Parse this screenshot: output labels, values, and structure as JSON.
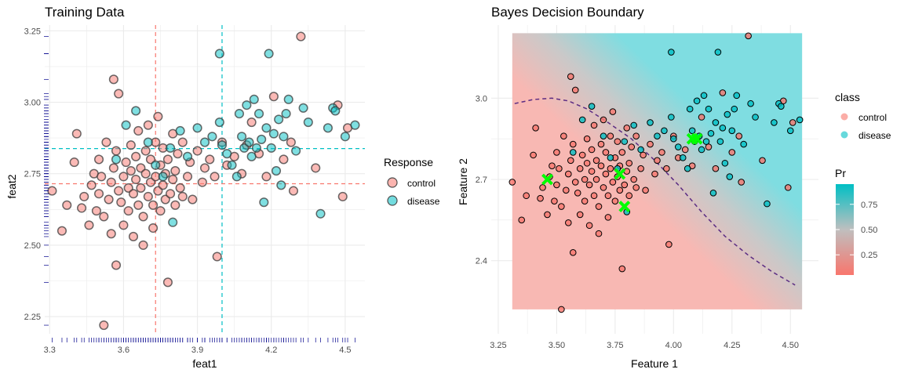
{
  "colors": {
    "control": "#F8766D",
    "disease": "#00BFC4",
    "grid": "#EBEBEB",
    "rug": "#00008B",
    "boundary": "#5B2C83",
    "marker": "#00FF00"
  },
  "chart_data": [
    {
      "type": "scatter",
      "title": "Training Data",
      "xlabel": "feat1",
      "ylabel": "feat2",
      "xlim": [
        3.28,
        4.58
      ],
      "ylim": [
        2.19,
        3.27
      ],
      "x_ticks": [
        "3.3",
        "3.6",
        "3.9",
        "4.2",
        "4.5"
      ],
      "y_ticks": [
        "2.25",
        "2.50",
        "2.75",
        "3.00",
        "3.25"
      ],
      "grid": true,
      "rug": true,
      "legend": {
        "title": "Response",
        "position": "right",
        "entries": [
          "control",
          "disease"
        ]
      },
      "reference_lines": [
        {
          "axis": "x",
          "value": 3.73,
          "class": "control"
        },
        {
          "axis": "x",
          "value": 4.0,
          "class": "disease"
        },
        {
          "axis": "y",
          "value": 2.715,
          "class": "control"
        },
        {
          "axis": "y",
          "value": 2.838,
          "class": "disease"
        }
      ],
      "series": [
        {
          "name": "control",
          "points": [
            [
              3.31,
              2.69
            ],
            [
              3.35,
              2.55
            ],
            [
              3.37,
              2.64
            ],
            [
              3.4,
              2.79
            ],
            [
              3.41,
              2.89
            ],
            [
              3.43,
              2.63
            ],
            [
              3.44,
              2.67
            ],
            [
              3.46,
              2.57
            ],
            [
              3.47,
              2.71
            ],
            [
              3.48,
              2.75
            ],
            [
              3.49,
              2.62
            ],
            [
              3.5,
              2.8
            ],
            [
              3.5,
              2.68
            ],
            [
              3.51,
              2.74
            ],
            [
              3.52,
              2.6
            ],
            [
              3.52,
              2.22
            ],
            [
              3.53,
              2.86
            ],
            [
              3.54,
              2.66
            ],
            [
              3.55,
              2.72
            ],
            [
              3.55,
              2.54
            ],
            [
              3.56,
              3.08
            ],
            [
              3.56,
              2.77
            ],
            [
              3.57,
              2.83
            ],
            [
              3.57,
              2.43
            ],
            [
              3.58,
              3.03
            ],
            [
              3.58,
              2.69
            ],
            [
              3.59,
              2.65
            ],
            [
              3.6,
              2.74
            ],
            [
              3.6,
              2.57
            ],
            [
              3.61,
              2.79
            ],
            [
              3.62,
              2.7
            ],
            [
              3.62,
              2.62
            ],
            [
              3.63,
              2.85
            ],
            [
              3.63,
              2.76
            ],
            [
              3.64,
              2.68
            ],
            [
              3.64,
              2.53
            ],
            [
              3.65,
              2.81
            ],
            [
              3.65,
              2.73
            ],
            [
              3.66,
              2.64
            ],
            [
              3.66,
              2.9
            ],
            [
              3.67,
              2.77
            ],
            [
              3.67,
              2.7
            ],
            [
              3.68,
              2.6
            ],
            [
              3.68,
              2.5
            ],
            [
              3.69,
              2.83
            ],
            [
              3.69,
              2.75
            ],
            [
              3.7,
              2.67
            ],
            [
              3.7,
              2.92
            ],
            [
              3.71,
              2.8
            ],
            [
              3.71,
              2.72
            ],
            [
              3.72,
              2.64
            ],
            [
              3.72,
              2.56
            ],
            [
              3.73,
              2.86
            ],
            [
              3.73,
              2.74
            ],
            [
              3.74,
              2.69
            ],
            [
              3.74,
              2.95
            ],
            [
              3.75,
              2.78
            ],
            [
              3.75,
              2.62
            ],
            [
              3.76,
              2.84
            ],
            [
              3.76,
              2.71
            ],
            [
              3.77,
              2.75
            ],
            [
              3.77,
              2.66
            ],
            [
              3.78,
              2.8
            ],
            [
              3.78,
              2.37
            ],
            [
              3.79,
              2.68
            ],
            [
              3.8,
              2.73
            ],
            [
              3.8,
              2.89
            ],
            [
              3.81,
              2.76
            ],
            [
              3.81,
              2.64
            ],
            [
              3.82,
              2.82
            ],
            [
              3.83,
              2.7
            ],
            [
              3.84,
              2.86
            ],
            [
              3.84,
              2.67
            ],
            [
              3.86,
              2.74
            ],
            [
              3.87,
              2.79
            ],
            [
              3.88,
              2.66
            ],
            [
              3.9,
              2.83
            ],
            [
              3.92,
              2.72
            ],
            [
              3.93,
              2.77
            ],
            [
              3.95,
              2.8
            ],
            [
              3.97,
              2.74
            ],
            [
              3.98,
              2.46
            ],
            [
              4.0,
              2.86
            ],
            [
              4.02,
              2.78
            ],
            [
              4.05,
              2.81
            ],
            [
              4.08,
              2.75
            ],
            [
              4.1,
              2.85
            ],
            [
              4.12,
              2.93
            ],
            [
              4.15,
              2.82
            ],
            [
              4.18,
              2.74
            ],
            [
              4.21,
              3.02
            ],
            [
              4.25,
              2.8
            ],
            [
              4.28,
              2.86
            ],
            [
              4.29,
              2.69
            ],
            [
              4.32,
              3.23
            ],
            [
              4.38,
              2.77
            ],
            [
              4.47,
              2.99
            ],
            [
              4.49,
              2.67
            ],
            [
              4.51,
              2.91
            ]
          ]
        },
        {
          "name": "disease",
          "points": [
            [
              3.57,
              2.8
            ],
            [
              3.61,
              2.92
            ],
            [
              3.65,
              2.97
            ],
            [
              3.7,
              2.86
            ],
            [
              3.73,
              2.78
            ],
            [
              3.76,
              2.74
            ],
            [
              3.79,
              2.84
            ],
            [
              3.8,
              2.58
            ],
            [
              3.83,
              2.9
            ],
            [
              3.86,
              2.81
            ],
            [
              3.9,
              2.91
            ],
            [
              3.93,
              2.86
            ],
            [
              3.96,
              2.88
            ],
            [
              3.99,
              3.17
            ],
            [
              3.99,
              2.93
            ],
            [
              4.0,
              2.85
            ],
            [
              4.02,
              2.82
            ],
            [
              4.04,
              2.78
            ],
            [
              4.06,
              2.74
            ],
            [
              4.07,
              2.96
            ],
            [
              4.08,
              2.88
            ],
            [
              4.09,
              2.84
            ],
            [
              4.1,
              2.99
            ],
            [
              4.11,
              2.86
            ],
            [
              4.12,
              2.81
            ],
            [
              4.13,
              3.01
            ],
            [
              4.14,
              2.84
            ],
            [
              4.15,
              2.96
            ],
            [
              4.16,
              2.87
            ],
            [
              4.17,
              2.65
            ],
            [
              4.18,
              2.91
            ],
            [
              4.19,
              3.17
            ],
            [
              4.2,
              2.84
            ],
            [
              4.21,
              2.89
            ],
            [
              4.22,
              2.76
            ],
            [
              4.23,
              2.94
            ],
            [
              4.24,
              2.71
            ],
            [
              4.25,
              2.88
            ],
            [
              4.26,
              2.96
            ],
            [
              4.27,
              3.01
            ],
            [
              4.3,
              2.83
            ],
            [
              4.33,
              2.98
            ],
            [
              4.35,
              2.93
            ],
            [
              4.4,
              2.61
            ],
            [
              4.45,
              2.98
            ],
            [
              4.46,
              2.97
            ],
            [
              4.5,
              2.88
            ],
            [
              4.54,
              2.92
            ],
            [
              4.43,
              2.91
            ]
          ]
        }
      ]
    },
    {
      "type": "heatmap",
      "title": "Bayes Decision Boundary",
      "xlabel": "Feature 1",
      "ylabel": "Feature 2",
      "xlim": [
        3.22,
        4.62
      ],
      "ylim": [
        2.13,
        3.27
      ],
      "x_ticks": [
        "3.25",
        "3.50",
        "3.75",
        "4.00",
        "4.25",
        "4.50"
      ],
      "y_ticks": [
        "2.4",
        "2.7",
        "3.0"
      ],
      "grid": true,
      "field_extent": {
        "x": [
          3.31,
          4.55
        ],
        "y": [
          2.22,
          3.24
        ]
      },
      "legend": [
        {
          "title": "class",
          "position": "right",
          "entries": [
            "control",
            "disease"
          ]
        },
        {
          "title": "Pr",
          "position": "right",
          "ticks": [
            "0.25",
            "0.50",
            "0.75"
          ],
          "range": [
            0.05,
            0.95
          ]
        }
      ],
      "boundary_curve": [
        [
          3.32,
          2.98
        ],
        [
          3.4,
          2.995
        ],
        [
          3.48,
          3.0
        ],
        [
          3.55,
          2.99
        ],
        [
          3.63,
          2.96
        ],
        [
          3.72,
          2.91
        ],
        [
          3.82,
          2.85
        ],
        [
          3.92,
          2.77
        ],
        [
          4.02,
          2.68
        ],
        [
          4.12,
          2.58
        ],
        [
          4.22,
          2.49
        ],
        [
          4.32,
          2.42
        ],
        [
          4.42,
          2.36
        ],
        [
          4.52,
          2.31
        ]
      ],
      "class_means": [
        [
          3.46,
          2.7
        ],
        [
          3.77,
          2.72
        ],
        [
          3.79,
          2.6
        ],
        [
          4.08,
          2.85
        ],
        [
          4.1,
          2.85
        ]
      ],
      "use_training_points": true
    }
  ]
}
